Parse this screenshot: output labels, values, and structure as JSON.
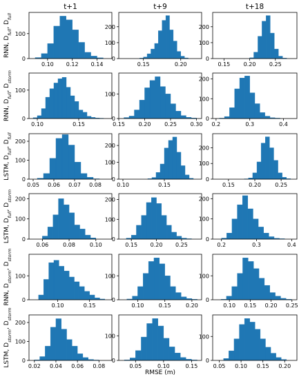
{
  "figure": {
    "column_titles": [
      "t+1",
      "t+9",
      "t+18"
    ],
    "x_axis_label": "RMSE (m)",
    "bar_color": "#1f77b4"
  },
  "chart_data": [
    {
      "type": "bar",
      "row": 0,
      "col": 0,
      "model": "RNN",
      "train_set": "full",
      "test_set": "full",
      "xlim": [
        0.085,
        0.152
      ],
      "ylim": [
        0,
        185
      ],
      "xticks": [
        0.1,
        0.12,
        0.14
      ],
      "xtick_labels": [
        "0.10",
        "0.12",
        "0.14"
      ],
      "yticks": [
        0,
        100
      ],
      "bin_edges": [
        0.09,
        0.095,
        0.1,
        0.105,
        0.11,
        0.115,
        0.12,
        0.125,
        0.13,
        0.135,
        0.14,
        0.145
      ],
      "counts": [
        4,
        20,
        60,
        130,
        170,
        155,
        115,
        65,
        25,
        10,
        3
      ]
    },
    {
      "type": "bar",
      "row": 0,
      "col": 1,
      "model": "RNN",
      "train_set": "full",
      "test_set": "full",
      "xlim": [
        0.117,
        0.228
      ],
      "ylim": [
        0,
        290
      ],
      "xticks": [
        0.15,
        0.2
      ],
      "xtick_labels": [
        "0.15",
        "0.20"
      ],
      "yticks": [
        0,
        100,
        200
      ],
      "bin_edges": [
        0.145,
        0.15,
        0.155,
        0.16,
        0.165,
        0.17,
        0.175,
        0.18,
        0.185,
        0.19,
        0.195,
        0.2,
        0.205,
        0.21
      ],
      "counts": [
        3,
        10,
        30,
        60,
        95,
        175,
        240,
        270,
        180,
        110,
        45,
        15,
        4
      ]
    },
    {
      "type": "bar",
      "row": 0,
      "col": 2,
      "model": "RNN",
      "train_set": "full",
      "test_set": "full",
      "xlim": [
        0.128,
        0.292
      ],
      "ylim": [
        0,
        290
      ],
      "xticks": [
        0.15,
        0.2,
        0.25
      ],
      "xtick_labels": [
        "0.15",
        "0.20",
        "0.25"
      ],
      "yticks": [
        0,
        100,
        200
      ],
      "bin_edges": [
        0.2,
        0.208,
        0.216,
        0.224,
        0.232,
        0.24,
        0.248,
        0.256,
        0.264,
        0.272
      ],
      "counts": [
        5,
        40,
        140,
        235,
        270,
        160,
        60,
        15,
        3
      ]
    },
    {
      "type": "bar",
      "row": 1,
      "col": 0,
      "model": "RNN",
      "train_set": "full",
      "test_set": "storm",
      "xlim": [
        0.09,
        0.19
      ],
      "ylim": [
        0,
        160
      ],
      "xticks": [
        0.1,
        0.15
      ],
      "xtick_labels": [
        "0.10",
        "0.15"
      ],
      "yticks": [
        0,
        100
      ],
      "bin_edges": [
        0.095,
        0.1,
        0.105,
        0.11,
        0.115,
        0.12,
        0.125,
        0.13,
        0.135,
        0.14,
        0.145,
        0.15,
        0.155,
        0.16,
        0.165,
        0.17,
        0.175,
        0.18
      ],
      "counts": [
        3,
        10,
        35,
        75,
        105,
        125,
        140,
        145,
        110,
        80,
        60,
        30,
        22,
        8,
        4,
        2,
        1
      ]
    },
    {
      "type": "bar",
      "row": 1,
      "col": 1,
      "model": "RNN",
      "train_set": "full",
      "test_set": "storm",
      "xlim": [
        0.15,
        0.31
      ],
      "ylim": [
        0,
        185
      ],
      "xticks": [
        0.15,
        0.2,
        0.25,
        0.3
      ],
      "xtick_labels": [
        "0.15",
        "0.20",
        "0.25",
        "0.30"
      ],
      "yticks": [
        0,
        100
      ],
      "bin_edges": [
        0.16,
        0.17,
        0.18,
        0.19,
        0.2,
        0.21,
        0.22,
        0.23,
        0.24,
        0.25,
        0.26,
        0.27,
        0.28,
        0.29,
        0.3
      ],
      "counts": [
        4,
        10,
        35,
        75,
        125,
        155,
        170,
        130,
        100,
        60,
        30,
        12,
        5,
        2
      ]
    },
    {
      "type": "bar",
      "row": 1,
      "col": 2,
      "model": "RNN",
      "train_set": "full",
      "test_set": "storm",
      "xlim": [
        0.19,
        0.44
      ],
      "ylim": [
        0,
        230
      ],
      "xticks": [
        0.2,
        0.3,
        0.4
      ],
      "xtick_labels": [
        "0.2",
        "0.3",
        "0.4"
      ],
      "yticks": [
        0,
        100,
        200
      ],
      "bin_edges": [
        0.21,
        0.225,
        0.24,
        0.255,
        0.27,
        0.285,
        0.3,
        0.315,
        0.33,
        0.345,
        0.36,
        0.375,
        0.39
      ],
      "counts": [
        2,
        10,
        55,
        150,
        205,
        215,
        130,
        75,
        30,
        12,
        4,
        2
      ]
    },
    {
      "type": "bar",
      "row": 2,
      "col": 0,
      "model": "LSTM",
      "train_set": "full",
      "test_set": "full",
      "xlim": [
        0.048,
        0.088
      ],
      "ylim": [
        0,
        240
      ],
      "xticks": [
        0.05,
        0.06,
        0.07,
        0.08
      ],
      "xtick_labels": [
        "0.05",
        "0.06",
        "0.07",
        "0.08"
      ],
      "yticks": [
        0,
        100,
        200
      ],
      "bin_edges": [
        0.052,
        0.055,
        0.058,
        0.061,
        0.064,
        0.067,
        0.07,
        0.073,
        0.076,
        0.079,
        0.082
      ],
      "counts": [
        5,
        30,
        110,
        215,
        235,
        180,
        90,
        30,
        10,
        2
      ]
    },
    {
      "type": "bar",
      "row": 2,
      "col": 1,
      "model": "LSTM",
      "train_set": "full",
      "test_set": "full",
      "xlim": [
        0.095,
        0.195
      ],
      "ylim": [
        0,
        270
      ],
      "xticks": [
        0.1,
        0.15
      ],
      "xtick_labels": [
        "0.10",
        "0.15"
      ],
      "yticks": [
        0,
        100,
        200
      ],
      "bin_edges": [
        0.13,
        0.135,
        0.14,
        0.145,
        0.15,
        0.155,
        0.16,
        0.165,
        0.17,
        0.175,
        0.18,
        0.185
      ],
      "counts": [
        3,
        10,
        40,
        90,
        185,
        230,
        250,
        160,
        80,
        25,
        5
      ]
    },
    {
      "type": "bar",
      "row": 2,
      "col": 2,
      "model": "LSTM",
      "train_set": "full",
      "test_set": "full",
      "xlim": [
        0.12,
        0.28
      ],
      "ylim": [
        0,
        290
      ],
      "xticks": [
        0.15,
        0.2,
        0.25
      ],
      "xtick_labels": [
        "0.15",
        "0.20",
        "0.25"
      ],
      "yticks": [
        0,
        100,
        200
      ],
      "bin_edges": [
        0.18,
        0.188,
        0.196,
        0.204,
        0.212,
        0.22,
        0.228,
        0.236,
        0.244,
        0.252,
        0.26,
        0.268
      ],
      "counts": [
        2,
        8,
        40,
        110,
        230,
        270,
        200,
        120,
        40,
        12,
        3
      ]
    },
    {
      "type": "bar",
      "row": 3,
      "col": 0,
      "model": "LSTM",
      "train_set": "full",
      "test_set": "storm",
      "xlim": [
        0.05,
        0.112
      ],
      "ylim": [
        0,
        225
      ],
      "xticks": [
        0.06,
        0.08,
        0.1
      ],
      "xtick_labels": [
        "0.06",
        "0.08",
        "0.10"
      ],
      "yticks": [
        0,
        100,
        200
      ],
      "bin_edges": [
        0.06,
        0.064,
        0.068,
        0.072,
        0.076,
        0.08,
        0.084,
        0.088,
        0.092,
        0.096,
        0.1
      ],
      "counts": [
        15,
        60,
        120,
        200,
        170,
        130,
        70,
        50,
        20,
        6
      ]
    },
    {
      "type": "bar",
      "row": 3,
      "col": 1,
      "model": "LSTM",
      "train_set": "full",
      "test_set": "storm",
      "xlim": [
        0.125,
        0.29
      ],
      "ylim": [
        0,
        230
      ],
      "xticks": [
        0.15,
        0.2,
        0.25
      ],
      "xtick_labels": [
        "0.15",
        "0.20",
        "0.25"
      ],
      "yticks": [
        0,
        100,
        200
      ],
      "bin_edges": [
        0.14,
        0.15,
        0.16,
        0.17,
        0.18,
        0.19,
        0.2,
        0.21,
        0.22,
        0.23,
        0.24,
        0.25,
        0.26,
        0.27
      ],
      "counts": [
        5,
        20,
        70,
        120,
        185,
        210,
        180,
        120,
        70,
        35,
        15,
        5,
        2
      ]
    },
    {
      "type": "bar",
      "row": 3,
      "col": 2,
      "model": "LSTM",
      "train_set": "full",
      "test_set": "storm",
      "xlim": [
        0.175,
        0.415
      ],
      "ylim": [
        0,
        225
      ],
      "xticks": [
        0.2,
        0.3,
        0.4
      ],
      "xtick_labels": [
        "0.2",
        "0.3",
        "0.4"
      ],
      "yticks": [
        0,
        100,
        200
      ],
      "bin_edges": [
        0.2,
        0.215,
        0.23,
        0.245,
        0.26,
        0.275,
        0.29,
        0.305,
        0.32,
        0.335,
        0.35,
        0.365,
        0.38
      ],
      "counts": [
        5,
        30,
        100,
        170,
        215,
        150,
        100,
        60,
        30,
        12,
        4,
        2
      ]
    },
    {
      "type": "bar",
      "row": 4,
      "col": 0,
      "model": "RNN",
      "train_set": "storm",
      "test_set": "storm",
      "xlim": [
        0.055,
        0.185
      ],
      "ylim": [
        0,
        190
      ],
      "xticks": [
        0.1,
        0.15
      ],
      "xtick_labels": [
        "0.10",
        "0.15"
      ],
      "yticks": [
        0,
        100
      ],
      "bin_edges": [
        0.07,
        0.078,
        0.086,
        0.094,
        0.102,
        0.11,
        0.118,
        0.126,
        0.134,
        0.142,
        0.15,
        0.158,
        0.166,
        0.174
      ],
      "counts": [
        20,
        85,
        155,
        165,
        140,
        120,
        95,
        75,
        55,
        35,
        20,
        8,
        3
      ]
    },
    {
      "type": "bar",
      "row": 4,
      "col": 1,
      "model": "RNN",
      "train_set": "storm",
      "test_set": "storm",
      "xlim": [
        0.065,
        0.218
      ],
      "ylim": [
        0,
        190
      ],
      "xticks": [
        0.1,
        0.15,
        0.2
      ],
      "xtick_labels": [
        "0.10",
        "0.15",
        "0.20"
      ],
      "yticks": [
        0,
        100
      ],
      "bin_edges": [
        0.08,
        0.09,
        0.1,
        0.11,
        0.12,
        0.13,
        0.14,
        0.15,
        0.16,
        0.17,
        0.18,
        0.19,
        0.2,
        0.21
      ],
      "counts": [
        3,
        15,
        55,
        110,
        160,
        175,
        150,
        100,
        55,
        30,
        12,
        5,
        2
      ]
    },
    {
      "type": "bar",
      "row": 4,
      "col": 2,
      "model": "RNN",
      "train_set": "storm",
      "test_set": "storm",
      "xlim": [
        0.06,
        0.262
      ],
      "ylim": [
        0,
        190
      ],
      "xticks": [
        0.1,
        0.15,
        0.2,
        0.25
      ],
      "xtick_labels": [
        "0.10",
        "0.15",
        "0.20",
        "0.25"
      ],
      "yticks": [
        0,
        100
      ],
      "bin_edges": [
        0.08,
        0.093,
        0.106,
        0.119,
        0.132,
        0.145,
        0.158,
        0.171,
        0.184,
        0.197,
        0.21,
        0.223,
        0.236,
        0.249
      ],
      "counts": [
        2,
        15,
        55,
        110,
        175,
        160,
        130,
        90,
        60,
        30,
        15,
        6,
        2
      ]
    },
    {
      "type": "bar",
      "row": 5,
      "col": 0,
      "model": "LSTM",
      "train_set": "storm",
      "test_set": "storm",
      "xlim": [
        0.015,
        0.092
      ],
      "ylim": [
        0,
        240
      ],
      "xticks": [
        0.02,
        0.04,
        0.06,
        0.08
      ],
      "xtick_labels": [
        "0.02",
        "0.04",
        "0.06",
        "0.08"
      ],
      "yticks": [
        0,
        100,
        200
      ],
      "bin_edges": [
        0.02,
        0.025,
        0.03,
        0.035,
        0.04,
        0.045,
        0.05,
        0.055,
        0.06,
        0.065,
        0.07,
        0.075,
        0.08
      ],
      "counts": [
        3,
        20,
        75,
        175,
        220,
        165,
        110,
        75,
        35,
        15,
        5,
        2
      ]
    },
    {
      "type": "bar",
      "row": 5,
      "col": 1,
      "model": "LSTM",
      "train_set": "storm",
      "test_set": "storm",
      "xlim": [
        0.02,
        0.168
      ],
      "ylim": [
        0,
        185
      ],
      "xticks": [
        0.05,
        0.1,
        0.15
      ],
      "xtick_labels": [
        "0.05",
        "0.10",
        "0.15"
      ],
      "yticks": [
        0,
        100
      ],
      "bin_edges": [
        0.03,
        0.04,
        0.05,
        0.06,
        0.07,
        0.08,
        0.09,
        0.1,
        0.11,
        0.12,
        0.13,
        0.14,
        0.15,
        0.16
      ],
      "counts": [
        2,
        10,
        40,
        95,
        150,
        170,
        140,
        90,
        55,
        30,
        12,
        5,
        2
      ]
    },
    {
      "type": "bar",
      "row": 5,
      "col": 2,
      "model": "LSTM",
      "train_set": "storm",
      "test_set": "storm",
      "xlim": [
        0.035,
        0.228
      ],
      "ylim": [
        0,
        190
      ],
      "xticks": [
        0.05,
        0.1,
        0.15,
        0.2
      ],
      "xtick_labels": [
        "0.05",
        "0.10",
        "0.15",
        "0.20"
      ],
      "yticks": [
        0,
        100
      ],
      "bin_edges": [
        0.06,
        0.072,
        0.084,
        0.096,
        0.108,
        0.12,
        0.132,
        0.144,
        0.156,
        0.168,
        0.18,
        0.192,
        0.204
      ],
      "counts": [
        8,
        40,
        90,
        150,
        175,
        160,
        130,
        90,
        55,
        30,
        12,
        4
      ]
    }
  ]
}
